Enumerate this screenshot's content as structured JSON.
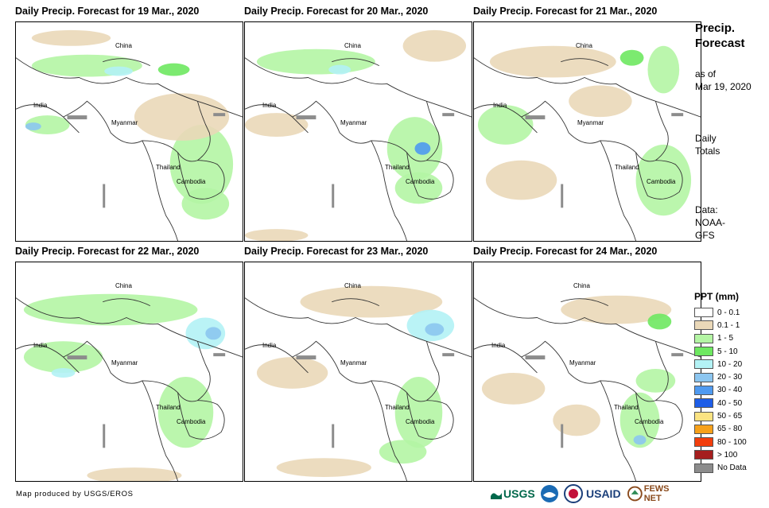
{
  "panels": [
    {
      "title": "Daily Precip. Forecast for 19 Mar., 2020",
      "labels": {
        "china": "China",
        "india": "India",
        "myanmar": "Myanmar",
        "thailand": "Thailand",
        "cambodia": "Cambodia"
      }
    },
    {
      "title": "Daily Precip. Forecast for 20 Mar., 2020",
      "labels": {
        "china": "China",
        "india": "India",
        "myanmar": "Myanmar",
        "thailand": "Thailand",
        "cambodia": "Cambodia"
      }
    },
    {
      "title": "Daily Precip. Forecast for 21 Mar., 2020",
      "labels": {
        "china": "China",
        "india": "India",
        "myanmar": "Myanmar",
        "thailand": "Thailand",
        "cambodia": "Cambodia"
      }
    },
    {
      "title": "Daily Precip. Forecast for 22 Mar., 2020",
      "labels": {
        "china": "China",
        "india": "India",
        "myanmar": "Myanmar",
        "thailand": "Thailand",
        "cambodia": "Cambodia"
      }
    },
    {
      "title": "Daily Precip. Forecast for 23 Mar., 2020",
      "labels": {
        "china": "China",
        "india": "India",
        "myanmar": "Myanmar",
        "thailand": "Thailand",
        "cambodia": "Cambodia"
      }
    },
    {
      "title": "Daily Precip. Forecast for 24 Mar., 2020",
      "labels": {
        "china": "China",
        "india": "India",
        "myanmar": "Myanmar",
        "thailand": "Thailand",
        "cambodia": "Cambodia"
      }
    }
  ],
  "side": {
    "title_line1": "Precip.",
    "title_line2": "Forecast",
    "asof_line1": "as of",
    "asof_line2": "Mar 19, 2020",
    "totals_line1": "Daily",
    "totals_line2": "Totals",
    "data_line1": "Data:",
    "data_line2": "NOAA-",
    "data_line3": "GFS"
  },
  "legend": {
    "title": "PPT (mm)",
    "items": [
      {
        "label": "0 - 0.1",
        "color": "#ffffff"
      },
      {
        "label": "0.1 - 1",
        "color": "#ead8b8"
      },
      {
        "label": "1 - 5",
        "color": "#b4f5a4"
      },
      {
        "label": "5 - 10",
        "color": "#6ee860"
      },
      {
        "label": "10 - 20",
        "color": "#b3f2f5"
      },
      {
        "label": "20 - 30",
        "color": "#8cc6f0"
      },
      {
        "label": "30 - 40",
        "color": "#4f9af0"
      },
      {
        "label": "40 - 50",
        "color": "#1e5ee8"
      },
      {
        "label": "50 - 65",
        "color": "#fbe382"
      },
      {
        "label": "65 - 80",
        "color": "#f7a11a"
      },
      {
        "label": "80 - 100",
        "color": "#f23e0c"
      },
      {
        "label": "> 100",
        "color": "#a51e1e"
      },
      {
        "label": "No Data",
        "color": "#8c8c8c"
      }
    ]
  },
  "footer": {
    "credit": "Map produced by USGS/EROS",
    "logos": {
      "usgs": "USGS",
      "usaid": "USAID",
      "fewsnet": "FEWS NET"
    }
  }
}
